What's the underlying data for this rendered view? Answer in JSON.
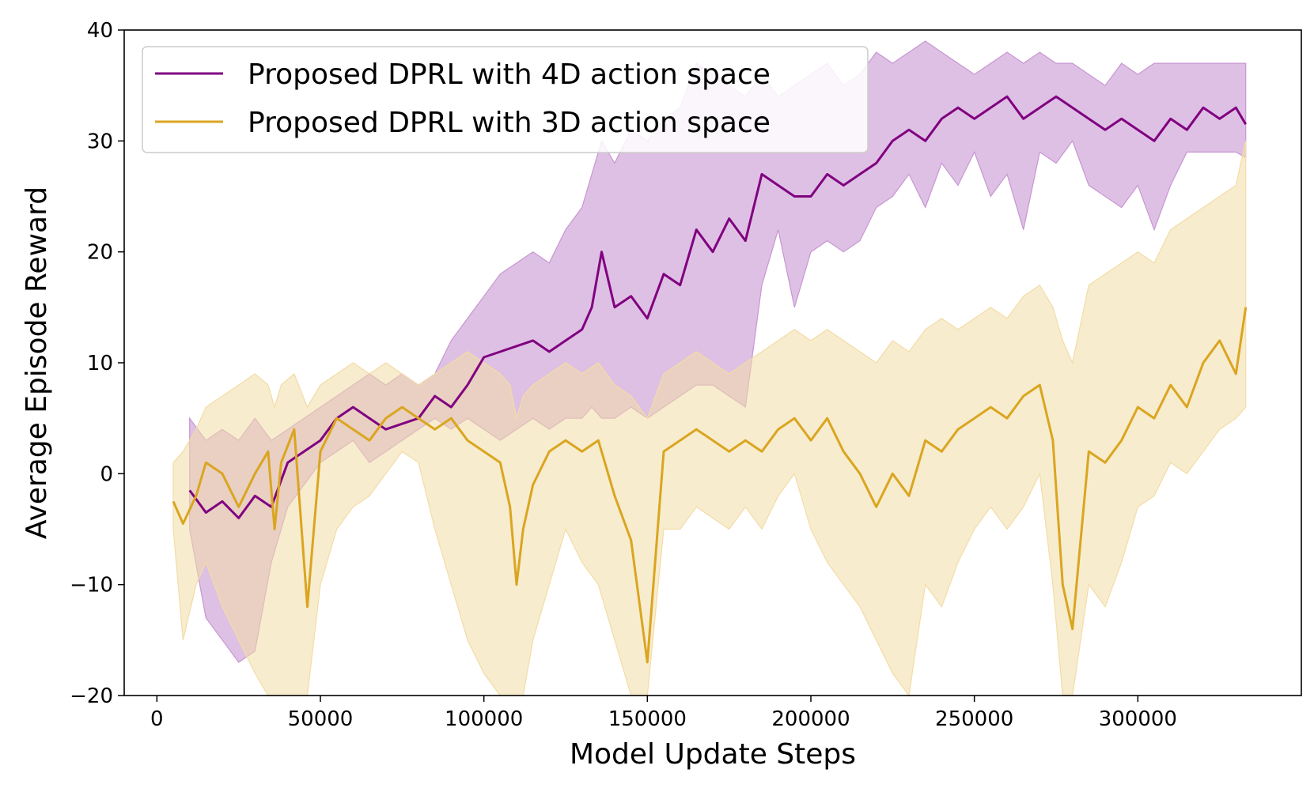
{
  "chart_data": {
    "type": "line",
    "title": "",
    "xlabel": "Model Update Steps",
    "ylabel": "Average Episode Reward",
    "xlim": [
      -10000,
      350000
    ],
    "ylim": [
      -20,
      40
    ],
    "xticks": [
      0,
      50000,
      100000,
      150000,
      200000,
      250000,
      300000
    ],
    "yticks": [
      -20,
      -10,
      0,
      10,
      20,
      30,
      40
    ],
    "ytick_labels": [
      "−20",
      "−10",
      "0",
      "10",
      "20",
      "30",
      "40"
    ],
    "grid": false,
    "legend_position": "upper-left",
    "series": [
      {
        "name": "Proposed DPRL with 4D action space",
        "color": "#800080",
        "band_color": "#c896d2",
        "x": [
          10000,
          15000,
          20000,
          25000,
          30000,
          35000,
          40000,
          45000,
          50000,
          55000,
          60000,
          65000,
          70000,
          75000,
          80000,
          85000,
          90000,
          95000,
          100000,
          105000,
          110000,
          115000,
          120000,
          125000,
          130000,
          133000,
          136000,
          140000,
          145000,
          150000,
          155000,
          160000,
          165000,
          170000,
          175000,
          180000,
          185000,
          190000,
          195000,
          200000,
          205000,
          210000,
          215000,
          220000,
          225000,
          230000,
          235000,
          240000,
          245000,
          250000,
          255000,
          260000,
          265000,
          270000,
          275000,
          280000,
          285000,
          290000,
          295000,
          300000,
          305000,
          310000,
          315000,
          320000,
          325000,
          330000,
          333000
        ],
        "mean": [
          -1.5,
          -3.5,
          -2.5,
          -4,
          -2,
          -3,
          1,
          2,
          3,
          5,
          6,
          5,
          4,
          4.5,
          5,
          7,
          6,
          8,
          10.5,
          11,
          11.5,
          12,
          11,
          12,
          13,
          15,
          20,
          15,
          16,
          14,
          18,
          17,
          22,
          20,
          23,
          21,
          27,
          26,
          25,
          25,
          27,
          26,
          27,
          28,
          30,
          31,
          30,
          32,
          33,
          32,
          33,
          34,
          32,
          33,
          34,
          33,
          32,
          31,
          32,
          31,
          30,
          32,
          31,
          33,
          32,
          33,
          31.5
        ],
        "lower": [
          -5,
          -13,
          -15,
          -17,
          -16,
          -8,
          -3,
          -1,
          1,
          2,
          3,
          1,
          2,
          3,
          4,
          5,
          4,
          5,
          4,
          3,
          4,
          5,
          4,
          5,
          5,
          6,
          5,
          5,
          6,
          5,
          6,
          7,
          8,
          8,
          7,
          6,
          17,
          22,
          15,
          20,
          21,
          20,
          21,
          24,
          25,
          27,
          24,
          28,
          26,
          29,
          25,
          27,
          22,
          29,
          28,
          30,
          26,
          25,
          24,
          26,
          22,
          26,
          29,
          29,
          29,
          29,
          28.5
        ],
        "upper": [
          5,
          3,
          4,
          3,
          5,
          3,
          4,
          5,
          6,
          7,
          8,
          9,
          8,
          9,
          8,
          9,
          12,
          14,
          16,
          18,
          19,
          20,
          19,
          22,
          24,
          27,
          30,
          28,
          31,
          30,
          32,
          33,
          37,
          36,
          35,
          34,
          36,
          34,
          35,
          36,
          37,
          35,
          36,
          38,
          37,
          38,
          39,
          38,
          37,
          36,
          37,
          38,
          37,
          38,
          37,
          37,
          36,
          35,
          37,
          36,
          37,
          37,
          37,
          37,
          37,
          37,
          37
        ]
      },
      {
        "name": "Proposed DPRL with 3D action space",
        "color": "#daa520",
        "band_color": "#f3dca6",
        "x": [
          5000,
          8000,
          12000,
          15000,
          20000,
          25000,
          30000,
          34000,
          36000,
          38000,
          42000,
          46000,
          50000,
          55000,
          60000,
          65000,
          70000,
          75000,
          80000,
          85000,
          90000,
          95000,
          100000,
          105000,
          108000,
          110000,
          112000,
          115000,
          120000,
          125000,
          130000,
          135000,
          140000,
          145000,
          150000,
          155000,
          160000,
          165000,
          170000,
          175000,
          180000,
          185000,
          190000,
          195000,
          200000,
          205000,
          210000,
          215000,
          220000,
          225000,
          230000,
          235000,
          240000,
          245000,
          250000,
          255000,
          260000,
          265000,
          270000,
          274000,
          277000,
          280000,
          285000,
          290000,
          295000,
          300000,
          305000,
          310000,
          315000,
          320000,
          325000,
          330000,
          333000
        ],
        "mean": [
          -2.5,
          -4.5,
          -2,
          1,
          0,
          -3,
          0,
          2,
          -5,
          1,
          4,
          -12,
          2,
          5,
          4,
          3,
          5,
          6,
          5,
          4,
          5,
          3,
          2,
          1,
          -3,
          -10,
          -5,
          -1,
          2,
          3,
          2,
          3,
          -2,
          -6,
          -17,
          2,
          3,
          4,
          3,
          2,
          3,
          2,
          4,
          5,
          3,
          5,
          2,
          0,
          -3,
          0,
          -2,
          3,
          2,
          4,
          5,
          6,
          5,
          7,
          8,
          3,
          -10,
          -14,
          2,
          1,
          3,
          6,
          5,
          8,
          6,
          10,
          12,
          9,
          15
        ],
        "lower": [
          -5,
          -15,
          -10,
          -8,
          -12,
          -15,
          -18,
          -20,
          -20,
          -20,
          -20,
          -20,
          -10,
          -5,
          -3,
          -2,
          0,
          2,
          1,
          -5,
          -10,
          -15,
          -18,
          -20,
          -20,
          -20,
          -20,
          -15,
          -10,
          -5,
          -8,
          -10,
          -15,
          -20,
          -20,
          -5,
          -5,
          -3,
          -4,
          -5,
          -3,
          -5,
          -2,
          0,
          -5,
          -8,
          -10,
          -12,
          -15,
          -18,
          -20,
          -10,
          -12,
          -8,
          -5,
          -3,
          -5,
          -3,
          0,
          -10,
          -20,
          -20,
          -10,
          -12,
          -8,
          -3,
          -2,
          1,
          0,
          2,
          4,
          5,
          6
        ],
        "upper": [
          1,
          2,
          4,
          6,
          7,
          8,
          9,
          8,
          6,
          8,
          9,
          6,
          8,
          9,
          10,
          9,
          10,
          9,
          8,
          9,
          10,
          11,
          10,
          9,
          8,
          5,
          7,
          8,
          9,
          10,
          9,
          10,
          8,
          7,
          5,
          9,
          10,
          11,
          10,
          9,
          10,
          11,
          12,
          13,
          12,
          13,
          12,
          11,
          10,
          12,
          11,
          13,
          14,
          13,
          14,
          15,
          14,
          16,
          17,
          15,
          12,
          10,
          17,
          18,
          19,
          20,
          19,
          22,
          23,
          24,
          25,
          26,
          30
        ]
      }
    ]
  }
}
